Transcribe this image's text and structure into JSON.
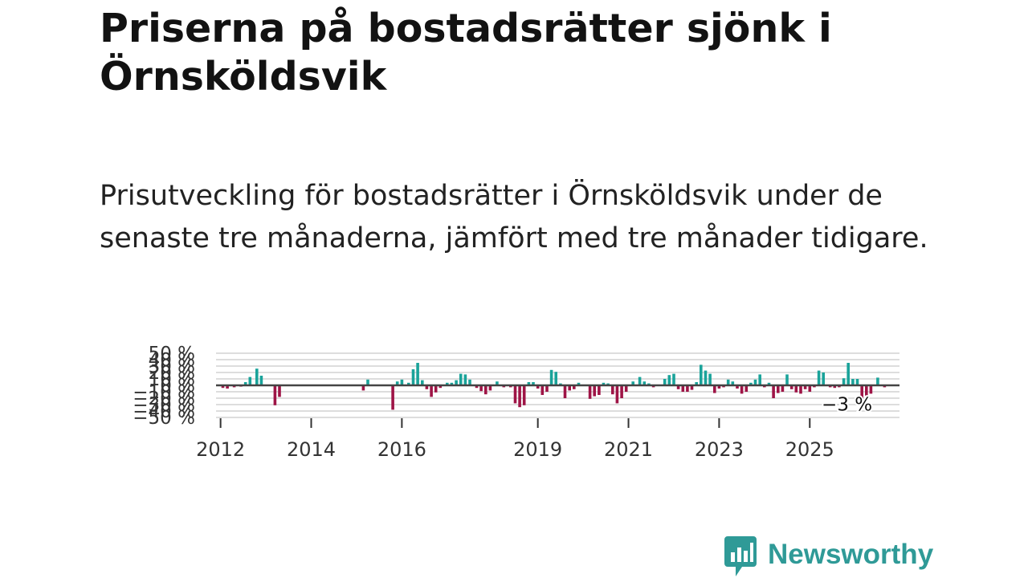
{
  "title": "Priserna på bostadsrätter sjönk i Örnsköldsvik",
  "subtitle": "Prisutveckling för bostadsrätter i Örnsköldsvik under de senaste tre månaderna, jämfört med tre månader tidigare.",
  "brand": {
    "name": "Newsworthy",
    "color": "#2f9a97"
  },
  "colors": {
    "positive": "#1aa39a",
    "negative": "#9e1446",
    "zero_line": "#444444",
    "grid": "#dddddd",
    "axis_text": "#333333"
  },
  "chart_data": {
    "type": "bar",
    "title": "",
    "xlabel": "",
    "ylabel": "",
    "ylim": [
      -50,
      50
    ],
    "y_ticks": [
      "50 %",
      "40 %",
      "30 %",
      "20 %",
      "10 %",
      "0 %",
      "−10 %",
      "−20 %",
      "−30 %",
      "−40 %",
      "−50 %"
    ],
    "y_tick_values": [
      50,
      40,
      30,
      20,
      10,
      0,
      -10,
      -20,
      -30,
      -40,
      -50
    ],
    "x_ticks": [
      "2012",
      "2014",
      "2016",
      "2019",
      "2021",
      "2023",
      "2025"
    ],
    "x_tick_values": [
      2012,
      2014,
      2016,
      2019,
      2021,
      2023,
      2025
    ],
    "x_range": [
      2011.9,
      2026.98
    ],
    "annotation": {
      "text": "−3 %",
      "year": 2025.75,
      "value": -3
    },
    "series": [
      {
        "name": "Prisutveckling",
        "points": [
          {
            "year": 2012.05,
            "value": -4
          },
          {
            "year": 2012.15,
            "value": -5
          },
          {
            "year": 2012.3,
            "value": -3
          },
          {
            "year": 2012.45,
            "value": -2
          },
          {
            "year": 2012.55,
            "value": 5
          },
          {
            "year": 2012.65,
            "value": 13
          },
          {
            "year": 2012.8,
            "value": 26
          },
          {
            "year": 2012.9,
            "value": 15
          },
          {
            "year": 2013.2,
            "value": -31
          },
          {
            "year": 2013.3,
            "value": -18
          },
          {
            "year": 2015.15,
            "value": -8
          },
          {
            "year": 2015.25,
            "value": 9
          },
          {
            "year": 2015.8,
            "value": -38
          },
          {
            "year": 2015.9,
            "value": 6
          },
          {
            "year": 2016.0,
            "value": 9
          },
          {
            "year": 2016.15,
            "value": 4
          },
          {
            "year": 2016.25,
            "value": 25
          },
          {
            "year": 2016.35,
            "value": 35
          },
          {
            "year": 2016.45,
            "value": 8
          },
          {
            "year": 2016.55,
            "value": -6
          },
          {
            "year": 2016.65,
            "value": -18
          },
          {
            "year": 2016.75,
            "value": -11
          },
          {
            "year": 2016.85,
            "value": -4
          },
          {
            "year": 2017.0,
            "value": 4
          },
          {
            "year": 2017.1,
            "value": 4
          },
          {
            "year": 2017.2,
            "value": 8
          },
          {
            "year": 2017.3,
            "value": 18
          },
          {
            "year": 2017.4,
            "value": 17
          },
          {
            "year": 2017.5,
            "value": 9
          },
          {
            "year": 2017.65,
            "value": -4
          },
          {
            "year": 2017.75,
            "value": -9
          },
          {
            "year": 2017.85,
            "value": -14
          },
          {
            "year": 2017.95,
            "value": -8
          },
          {
            "year": 2018.1,
            "value": 6
          },
          {
            "year": 2018.25,
            "value": -3
          },
          {
            "year": 2018.4,
            "value": -3
          },
          {
            "year": 2018.5,
            "value": -28
          },
          {
            "year": 2018.6,
            "value": -34
          },
          {
            "year": 2018.7,
            "value": -31
          },
          {
            "year": 2018.8,
            "value": 5
          },
          {
            "year": 2018.9,
            "value": 5
          },
          {
            "year": 2019.0,
            "value": -5
          },
          {
            "year": 2019.1,
            "value": -15
          },
          {
            "year": 2019.2,
            "value": -10
          },
          {
            "year": 2019.3,
            "value": 24
          },
          {
            "year": 2019.4,
            "value": 21
          },
          {
            "year": 2019.5,
            "value": 3
          },
          {
            "year": 2019.6,
            "value": -20
          },
          {
            "year": 2019.7,
            "value": -8
          },
          {
            "year": 2019.8,
            "value": -6
          },
          {
            "year": 2019.9,
            "value": 4
          },
          {
            "year": 2020.15,
            "value": -21
          },
          {
            "year": 2020.25,
            "value": -17
          },
          {
            "year": 2020.35,
            "value": -15
          },
          {
            "year": 2020.45,
            "value": 4
          },
          {
            "year": 2020.55,
            "value": 3
          },
          {
            "year": 2020.65,
            "value": -14
          },
          {
            "year": 2020.75,
            "value": -28
          },
          {
            "year": 2020.85,
            "value": -20
          },
          {
            "year": 2020.95,
            "value": -10
          },
          {
            "year": 2021.1,
            "value": 6
          },
          {
            "year": 2021.25,
            "value": 13
          },
          {
            "year": 2021.35,
            "value": 6
          },
          {
            "year": 2021.45,
            "value": 3
          },
          {
            "year": 2021.55,
            "value": -3
          },
          {
            "year": 2021.8,
            "value": 10
          },
          {
            "year": 2021.9,
            "value": 16
          },
          {
            "year": 2022.0,
            "value": 18
          },
          {
            "year": 2022.1,
            "value": -6
          },
          {
            "year": 2022.2,
            "value": -10
          },
          {
            "year": 2022.3,
            "value": -10
          },
          {
            "year": 2022.4,
            "value": -7
          },
          {
            "year": 2022.5,
            "value": 5
          },
          {
            "year": 2022.6,
            "value": 32
          },
          {
            "year": 2022.7,
            "value": 23
          },
          {
            "year": 2022.8,
            "value": 18
          },
          {
            "year": 2022.9,
            "value": -12
          },
          {
            "year": 2023.0,
            "value": -5
          },
          {
            "year": 2023.1,
            "value": -3
          },
          {
            "year": 2023.2,
            "value": 9
          },
          {
            "year": 2023.3,
            "value": 6
          },
          {
            "year": 2023.4,
            "value": -5
          },
          {
            "year": 2023.5,
            "value": -13
          },
          {
            "year": 2023.6,
            "value": -10
          },
          {
            "year": 2023.7,
            "value": 4
          },
          {
            "year": 2023.8,
            "value": 9
          },
          {
            "year": 2023.9,
            "value": 17
          },
          {
            "year": 2024.0,
            "value": -3
          },
          {
            "year": 2024.1,
            "value": 4
          },
          {
            "year": 2024.2,
            "value": -20
          },
          {
            "year": 2024.3,
            "value": -12
          },
          {
            "year": 2024.4,
            "value": -10
          },
          {
            "year": 2024.5,
            "value": 17
          },
          {
            "year": 2024.6,
            "value": -6
          },
          {
            "year": 2024.7,
            "value": -11
          },
          {
            "year": 2024.8,
            "value": -13
          },
          {
            "year": 2024.9,
            "value": -6
          },
          {
            "year": 2025.0,
            "value": -10
          },
          {
            "year": 2025.1,
            "value": -3
          },
          {
            "year": 2025.2,
            "value": 23
          },
          {
            "year": 2025.3,
            "value": 20
          },
          {
            "year": 2025.45,
            "value": -3
          },
          {
            "year": 2025.55,
            "value": -4
          },
          {
            "year": 2025.65,
            "value": -3
          },
          {
            "year": 2025.75,
            "value": 11
          },
          {
            "year": 2025.85,
            "value": 35
          },
          {
            "year": 2025.95,
            "value": 10
          },
          {
            "year": 2026.05,
            "value": 10
          },
          {
            "year": 2026.15,
            "value": -23
          },
          {
            "year": 2026.25,
            "value": -16
          },
          {
            "year": 2026.35,
            "value": -13
          },
          {
            "year": 2026.5,
            "value": 12
          },
          {
            "year": 2026.65,
            "value": -3
          }
        ]
      }
    ]
  }
}
